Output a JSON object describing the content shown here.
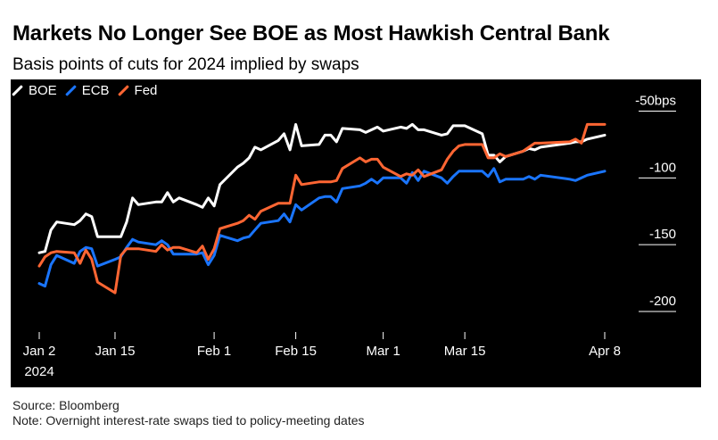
{
  "title": "Markets No Longer See BOE as Most Hawkish Central Bank",
  "subtitle": "Basis points of cuts for 2024 implied by swaps",
  "source": "Source: Bloomberg",
  "note": "Note: Overnight interest-rate swaps tied to policy-meeting dates",
  "chart_data": {
    "type": "line",
    "x_date_format": "YYYY-MM-DD",
    "xlim": [
      "2024-01-02",
      "2024-04-08"
    ],
    "ylim": [
      -212,
      -37
    ],
    "grid": false,
    "legend_position": "top-left",
    "x_ticks": [
      {
        "value": "2024-01-02",
        "label": "Jan 2"
      },
      {
        "value": "2024-01-15",
        "label": "Jan 15"
      },
      {
        "value": "2024-02-01",
        "label": "Feb 1"
      },
      {
        "value": "2024-02-15",
        "label": "Feb 15"
      },
      {
        "value": "2024-03-01",
        "label": "Mar 1"
      },
      {
        "value": "2024-03-15",
        "label": "Mar 15"
      },
      {
        "value": "2024-04-08",
        "label": "Apr 8"
      }
    ],
    "x_sublabel": "2024",
    "y_ticks": [
      {
        "value": -50,
        "label": "-50bps"
      },
      {
        "value": -100,
        "label": "-100"
      },
      {
        "value": -150,
        "label": "-150"
      },
      {
        "value": -200,
        "label": "-200"
      }
    ],
    "series": [
      {
        "name": "BOE",
        "color": "#ffffff",
        "points": [
          [
            "2024-01-02",
            -156
          ],
          [
            "2024-01-03",
            -155
          ],
          [
            "2024-01-04",
            -139
          ],
          [
            "2024-01-05",
            -133
          ],
          [
            "2024-01-08",
            -135
          ],
          [
            "2024-01-09",
            -132
          ],
          [
            "2024-01-10",
            -127
          ],
          [
            "2024-01-11",
            -129
          ],
          [
            "2024-01-12",
            -144
          ],
          [
            "2024-01-15",
            -144
          ],
          [
            "2024-01-16",
            -144
          ],
          [
            "2024-01-17",
            -133
          ],
          [
            "2024-01-18",
            -115
          ],
          [
            "2024-01-19",
            -120
          ],
          [
            "2024-01-22",
            -118
          ],
          [
            "2024-01-23",
            -118
          ],
          [
            "2024-01-24",
            -111
          ],
          [
            "2024-01-25",
            -118
          ],
          [
            "2024-01-26",
            -115
          ],
          [
            "2024-01-29",
            -120
          ],
          [
            "2024-01-30",
            -122
          ],
          [
            "2024-01-31",
            -115
          ],
          [
            "2024-02-01",
            -121
          ],
          [
            "2024-02-02",
            -105
          ],
          [
            "2024-02-05",
            -92
          ],
          [
            "2024-02-06",
            -89
          ],
          [
            "2024-02-07",
            -85
          ],
          [
            "2024-02-08",
            -77
          ],
          [
            "2024-02-09",
            -79
          ],
          [
            "2024-02-12",
            -72
          ],
          [
            "2024-02-13",
            -67
          ],
          [
            "2024-02-14",
            -79
          ],
          [
            "2024-02-15",
            -60
          ],
          [
            "2024-02-16",
            -76
          ],
          [
            "2024-02-19",
            -75
          ],
          [
            "2024-02-20",
            -68
          ],
          [
            "2024-02-21",
            -68
          ],
          [
            "2024-02-22",
            -73
          ],
          [
            "2024-02-23",
            -63
          ],
          [
            "2024-02-26",
            -64
          ],
          [
            "2024-02-27",
            -66
          ],
          [
            "2024-02-28",
            -64
          ],
          [
            "2024-02-29",
            -62
          ],
          [
            "2024-03-01",
            -65
          ],
          [
            "2024-03-04",
            -62
          ],
          [
            "2024-03-05",
            -63
          ],
          [
            "2024-03-06",
            -60
          ],
          [
            "2024-03-07",
            -64
          ],
          [
            "2024-03-08",
            -64
          ],
          [
            "2024-03-11",
            -68
          ],
          [
            "2024-03-12",
            -67
          ],
          [
            "2024-03-13",
            -61
          ],
          [
            "2024-03-14",
            -61
          ],
          [
            "2024-03-15",
            -61
          ],
          [
            "2024-03-18",
            -67
          ],
          [
            "2024-03-19",
            -83
          ],
          [
            "2024-03-20",
            -83
          ],
          [
            "2024-03-21",
            -88
          ],
          [
            "2024-03-22",
            -84
          ],
          [
            "2024-03-25",
            -80
          ],
          [
            "2024-03-26",
            -78
          ],
          [
            "2024-03-27",
            -79
          ],
          [
            "2024-03-28",
            -77
          ],
          [
            "2024-04-02",
            -74
          ],
          [
            "2024-04-03",
            -73
          ],
          [
            "2024-04-04",
            -73
          ],
          [
            "2024-04-05",
            -71
          ],
          [
            "2024-04-08",
            -68
          ]
        ]
      },
      {
        "name": "ECB",
        "color": "#1a75ff",
        "points": [
          [
            "2024-01-02",
            -179
          ],
          [
            "2024-01-03",
            -181
          ],
          [
            "2024-01-04",
            -165
          ],
          [
            "2024-01-05",
            -158
          ],
          [
            "2024-01-08",
            -164
          ],
          [
            "2024-01-09",
            -155
          ],
          [
            "2024-01-10",
            -152
          ],
          [
            "2024-01-11",
            -153
          ],
          [
            "2024-01-12",
            -166
          ],
          [
            "2024-01-15",
            -161
          ],
          [
            "2024-01-16",
            -159
          ],
          [
            "2024-01-17",
            -152
          ],
          [
            "2024-01-18",
            -146
          ],
          [
            "2024-01-19",
            -148
          ],
          [
            "2024-01-22",
            -150
          ],
          [
            "2024-01-23",
            -147
          ],
          [
            "2024-01-24",
            -150
          ],
          [
            "2024-01-25",
            -157
          ],
          [
            "2024-01-26",
            -157
          ],
          [
            "2024-01-29",
            -157
          ],
          [
            "2024-01-30",
            -156
          ],
          [
            "2024-01-31",
            -165
          ],
          [
            "2024-02-01",
            -158
          ],
          [
            "2024-02-02",
            -143
          ],
          [
            "2024-02-05",
            -147
          ],
          [
            "2024-02-06",
            -145
          ],
          [
            "2024-02-07",
            -144
          ],
          [
            "2024-02-08",
            -139
          ],
          [
            "2024-02-09",
            -134
          ],
          [
            "2024-02-12",
            -132
          ],
          [
            "2024-02-13",
            -127
          ],
          [
            "2024-02-14",
            -133
          ],
          [
            "2024-02-15",
            -120
          ],
          [
            "2024-02-16",
            -124
          ],
          [
            "2024-02-19",
            -115
          ],
          [
            "2024-02-20",
            -114
          ],
          [
            "2024-02-21",
            -114
          ],
          [
            "2024-02-22",
            -118
          ],
          [
            "2024-02-23",
            -108
          ],
          [
            "2024-02-26",
            -106
          ],
          [
            "2024-02-27",
            -104
          ],
          [
            "2024-02-28",
            -101
          ],
          [
            "2024-02-29",
            -104
          ],
          [
            "2024-03-01",
            -100
          ],
          [
            "2024-03-04",
            -100
          ],
          [
            "2024-03-05",
            -104
          ],
          [
            "2024-03-06",
            -96
          ],
          [
            "2024-03-07",
            -102
          ],
          [
            "2024-03-08",
            -95
          ],
          [
            "2024-03-11",
            -100
          ],
          [
            "2024-03-12",
            -104
          ],
          [
            "2024-03-13",
            -99
          ],
          [
            "2024-03-14",
            -95
          ],
          [
            "2024-03-15",
            -95
          ],
          [
            "2024-03-18",
            -95
          ],
          [
            "2024-03-19",
            -99
          ],
          [
            "2024-03-20",
            -93
          ],
          [
            "2024-03-21",
            -103
          ],
          [
            "2024-03-22",
            -101
          ],
          [
            "2024-03-25",
            -101
          ],
          [
            "2024-03-26",
            -99
          ],
          [
            "2024-03-27",
            -101
          ],
          [
            "2024-03-28",
            -98
          ],
          [
            "2024-04-02",
            -101
          ],
          [
            "2024-04-03",
            -102
          ],
          [
            "2024-04-04",
            -100
          ],
          [
            "2024-04-05",
            -98
          ],
          [
            "2024-04-08",
            -95
          ]
        ]
      },
      {
        "name": "Fed",
        "color": "#ff6633",
        "points": [
          [
            "2024-01-02",
            -166
          ],
          [
            "2024-01-03",
            -159
          ],
          [
            "2024-01-04",
            -156
          ],
          [
            "2024-01-05",
            -155
          ],
          [
            "2024-01-08",
            -156
          ],
          [
            "2024-01-09",
            -164
          ],
          [
            "2024-01-10",
            -154
          ],
          [
            "2024-01-11",
            -161
          ],
          [
            "2024-01-12",
            -178
          ],
          [
            "2024-01-15",
            -186
          ],
          [
            "2024-01-16",
            -158
          ],
          [
            "2024-01-17",
            -153
          ],
          [
            "2024-01-18",
            -153
          ],
          [
            "2024-01-19",
            -153
          ],
          [
            "2024-01-22",
            -155
          ],
          [
            "2024-01-23",
            -150
          ],
          [
            "2024-01-24",
            -154
          ],
          [
            "2024-01-25",
            -152
          ],
          [
            "2024-01-26",
            -152
          ],
          [
            "2024-01-29",
            -156
          ],
          [
            "2024-01-30",
            -151
          ],
          [
            "2024-01-31",
            -161
          ],
          [
            "2024-02-01",
            -153
          ],
          [
            "2024-02-02",
            -138
          ],
          [
            "2024-02-05",
            -134
          ],
          [
            "2024-02-06",
            -132
          ],
          [
            "2024-02-07",
            -128
          ],
          [
            "2024-02-08",
            -131
          ],
          [
            "2024-02-09",
            -125
          ],
          [
            "2024-02-12",
            -119
          ],
          [
            "2024-02-13",
            -119
          ],
          [
            "2024-02-14",
            -119
          ],
          [
            "2024-02-15",
            -98
          ],
          [
            "2024-02-16",
            -105
          ],
          [
            "2024-02-19",
            -103
          ],
          [
            "2024-02-20",
            -103
          ],
          [
            "2024-02-21",
            -103
          ],
          [
            "2024-02-22",
            -102
          ],
          [
            "2024-02-23",
            -93
          ],
          [
            "2024-02-26",
            -85
          ],
          [
            "2024-02-27",
            -88
          ],
          [
            "2024-02-28",
            -86
          ],
          [
            "2024-02-29",
            -86
          ],
          [
            "2024-03-01",
            -92
          ],
          [
            "2024-03-04",
            -99
          ],
          [
            "2024-03-05",
            -97
          ],
          [
            "2024-03-06",
            -98
          ],
          [
            "2024-03-07",
            -94
          ],
          [
            "2024-03-08",
            -99
          ],
          [
            "2024-03-11",
            -94
          ],
          [
            "2024-03-12",
            -86
          ],
          [
            "2024-03-13",
            -80
          ],
          [
            "2024-03-14",
            -76
          ],
          [
            "2024-03-15",
            -75
          ],
          [
            "2024-03-18",
            -75
          ],
          [
            "2024-03-19",
            -85
          ],
          [
            "2024-03-20",
            -85
          ],
          [
            "2024-03-21",
            -82
          ],
          [
            "2024-03-22",
            -84
          ],
          [
            "2024-03-25",
            -80
          ],
          [
            "2024-03-26",
            -77
          ],
          [
            "2024-03-27",
            -74
          ],
          [
            "2024-03-28",
            -74
          ],
          [
            "2024-04-02",
            -73
          ],
          [
            "2024-04-03",
            -71
          ],
          [
            "2024-04-04",
            -74
          ],
          [
            "2024-04-05",
            -60
          ],
          [
            "2024-04-08",
            -60
          ]
        ]
      }
    ]
  }
}
